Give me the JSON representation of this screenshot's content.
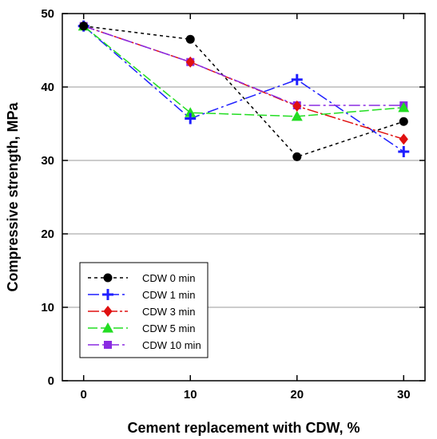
{
  "chart_data": {
    "type": "line",
    "xlabel": "Cement replacement with CDW, %",
    "ylabel": "Compressive strength, MPa",
    "x": [
      0,
      10,
      20,
      30
    ],
    "xlim": [
      -2,
      32
    ],
    "ylim": [
      0,
      50
    ],
    "xticks": [
      0,
      10,
      20,
      30
    ],
    "yticks": [
      0,
      10,
      20,
      30,
      40,
      50
    ],
    "grid": "horizontal",
    "legend_position": "bottom-left",
    "series": [
      {
        "name": "CDW 0 min",
        "values": [
          48.3,
          46.5,
          30.5,
          35.3
        ],
        "color": "#000000",
        "marker": "circle",
        "dash": "4,4"
      },
      {
        "name": "CDW 1 min",
        "values": [
          48.3,
          35.7,
          41.0,
          31.2
        ],
        "color": "#1f1fff",
        "marker": "plus",
        "dash": "14,4,3,4"
      },
      {
        "name": "CDW 3 min",
        "values": [
          48.3,
          43.4,
          37.4,
          32.9
        ],
        "color": "#e01010",
        "marker": "diamond",
        "dash": "14,3,3,3"
      },
      {
        "name": "CDW 5 min",
        "values": [
          48.3,
          36.5,
          36.0,
          37.2
        ],
        "color": "#22dd22",
        "marker": "triangle",
        "dash": "12,4"
      },
      {
        "name": "CDW 10 min",
        "values": [
          48.3,
          43.4,
          37.5,
          37.5
        ],
        "color": "#8a2be2",
        "marker": "square",
        "dash": "14,4,3,4"
      }
    ]
  }
}
